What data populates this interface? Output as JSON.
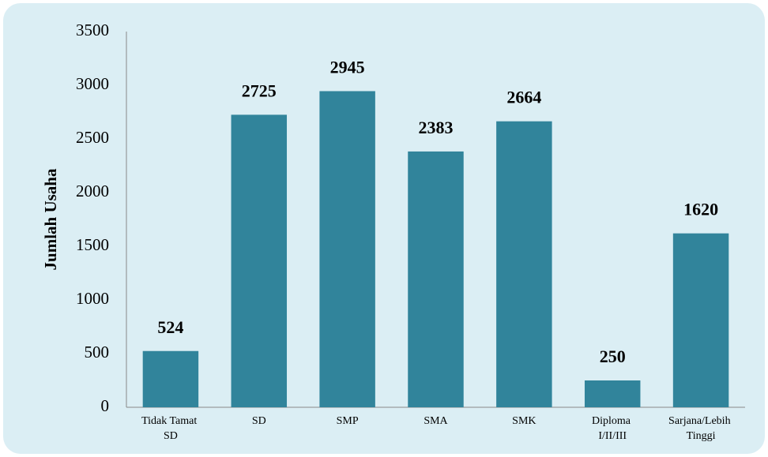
{
  "chart_data": {
    "type": "bar",
    "y_label": "Jumlah Usaha",
    "categories": [
      "Tidak Tamat SD",
      "SD",
      "SMP",
      "SMA",
      "SMK",
      "Diploma I/II/III",
      "Sarjana/Lebih Tinggi"
    ],
    "values": [
      524,
      2725,
      2945,
      2383,
      2664,
      250,
      1620
    ],
    "color": "#31849b",
    "ylim": [
      0,
      3500
    ],
    "yticks": [
      0,
      500,
      1000,
      1500,
      2000,
      2500,
      3000,
      3500
    ],
    "grid": false
  }
}
